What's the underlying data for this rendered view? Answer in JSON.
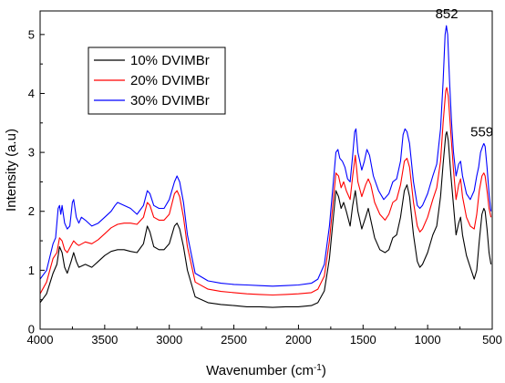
{
  "chart_data": {
    "type": "line",
    "title": "",
    "xlabel": "Wavenumber (cm",
    "xlabel_sup": "-1",
    "xlabel_tail": ")",
    "ylabel": "Intensity (a.u)",
    "xlim": [
      4000,
      500
    ],
    "ylim": [
      0,
      5.4
    ],
    "x_reversed": true,
    "x_ticks": [
      4000,
      3500,
      3000,
      2500,
      2000,
      1500,
      1000,
      500
    ],
    "x_tick_labels": [
      "4000",
      "3500",
      "3000",
      "2500",
      "2000",
      "1500",
      "1000",
      "500"
    ],
    "y_ticks": [
      0,
      1,
      2,
      3,
      4,
      5
    ],
    "y_tick_labels": [
      "0",
      "1",
      "2",
      "3",
      "4",
      "5"
    ],
    "grid": false,
    "legend_position": "top-left",
    "annotations": [
      {
        "text": "852",
        "x": 852,
        "y": 5.15
      },
      {
        "text": "559",
        "x": 559,
        "y": 3.15
      }
    ],
    "series": [
      {
        "name": "10% DVIMBr",
        "color": "#000000",
        "points": [
          [
            4000,
            0.45
          ],
          [
            3950,
            0.6
          ],
          [
            3900,
            0.95
          ],
          [
            3870,
            1.1
          ],
          [
            3850,
            1.4
          ],
          [
            3830,
            1.3
          ],
          [
            3810,
            1.05
          ],
          [
            3790,
            0.95
          ],
          [
            3760,
            1.15
          ],
          [
            3740,
            1.3
          ],
          [
            3720,
            1.15
          ],
          [
            3700,
            1.05
          ],
          [
            3650,
            1.1
          ],
          [
            3600,
            1.05
          ],
          [
            3550,
            1.15
          ],
          [
            3500,
            1.25
          ],
          [
            3450,
            1.32
          ],
          [
            3400,
            1.35
          ],
          [
            3350,
            1.35
          ],
          [
            3300,
            1.32
          ],
          [
            3250,
            1.3
          ],
          [
            3200,
            1.45
          ],
          [
            3170,
            1.75
          ],
          [
            3150,
            1.65
          ],
          [
            3120,
            1.4
          ],
          [
            3080,
            1.35
          ],
          [
            3040,
            1.35
          ],
          [
            3000,
            1.45
          ],
          [
            2960,
            1.75
          ],
          [
            2940,
            1.8
          ],
          [
            2920,
            1.7
          ],
          [
            2890,
            1.4
          ],
          [
            2860,
            1.0
          ],
          [
            2800,
            0.55
          ],
          [
            2700,
            0.45
          ],
          [
            2600,
            0.42
          ],
          [
            2500,
            0.4
          ],
          [
            2400,
            0.38
          ],
          [
            2300,
            0.38
          ],
          [
            2200,
            0.37
          ],
          [
            2100,
            0.38
          ],
          [
            2000,
            0.38
          ],
          [
            1900,
            0.4
          ],
          [
            1850,
            0.45
          ],
          [
            1800,
            0.65
          ],
          [
            1760,
            1.2
          ],
          [
            1730,
            1.9
          ],
          [
            1710,
            2.35
          ],
          [
            1690,
            2.25
          ],
          [
            1670,
            2.05
          ],
          [
            1650,
            2.15
          ],
          [
            1630,
            2.0
          ],
          [
            1600,
            1.75
          ],
          [
            1580,
            2.1
          ],
          [
            1560,
            2.35
          ],
          [
            1540,
            2.0
          ],
          [
            1510,
            1.7
          ],
          [
            1480,
            1.9
          ],
          [
            1460,
            2.05
          ],
          [
            1440,
            1.85
          ],
          [
            1410,
            1.55
          ],
          [
            1370,
            1.35
          ],
          [
            1330,
            1.3
          ],
          [
            1300,
            1.35
          ],
          [
            1270,
            1.55
          ],
          [
            1240,
            1.6
          ],
          [
            1210,
            1.9
          ],
          [
            1180,
            2.35
          ],
          [
            1160,
            2.45
          ],
          [
            1140,
            2.25
          ],
          [
            1110,
            1.6
          ],
          [
            1080,
            1.15
          ],
          [
            1060,
            1.05
          ],
          [
            1040,
            1.1
          ],
          [
            1000,
            1.3
          ],
          [
            960,
            1.6
          ],
          [
            930,
            1.75
          ],
          [
            900,
            2.25
          ],
          [
            880,
            2.8
          ],
          [
            860,
            3.3
          ],
          [
            852,
            3.35
          ],
          [
            840,
            3.2
          ],
          [
            820,
            2.6
          ],
          [
            800,
            2.1
          ],
          [
            780,
            1.6
          ],
          [
            760,
            1.8
          ],
          [
            745,
            1.9
          ],
          [
            730,
            1.6
          ],
          [
            700,
            1.25
          ],
          [
            670,
            1.05
          ],
          [
            640,
            0.85
          ],
          [
            620,
            1.0
          ],
          [
            600,
            1.5
          ],
          [
            580,
            1.95
          ],
          [
            565,
            2.05
          ],
          [
            555,
            2.0
          ],
          [
            540,
            1.7
          ],
          [
            525,
            1.3
          ],
          [
            510,
            1.1
          ]
        ]
      },
      {
        "name": "20% DVIMBr",
        "color": "#ff0000",
        "points": [
          [
            4000,
            0.6
          ],
          [
            3950,
            0.8
          ],
          [
            3900,
            1.2
          ],
          [
            3870,
            1.3
          ],
          [
            3850,
            1.55
          ],
          [
            3830,
            1.5
          ],
          [
            3810,
            1.35
          ],
          [
            3790,
            1.3
          ],
          [
            3760,
            1.42
          ],
          [
            3740,
            1.5
          ],
          [
            3720,
            1.45
          ],
          [
            3700,
            1.42
          ],
          [
            3650,
            1.48
          ],
          [
            3600,
            1.45
          ],
          [
            3550,
            1.52
          ],
          [
            3500,
            1.62
          ],
          [
            3450,
            1.72
          ],
          [
            3400,
            1.78
          ],
          [
            3350,
            1.8
          ],
          [
            3300,
            1.8
          ],
          [
            3250,
            1.78
          ],
          [
            3200,
            1.9
          ],
          [
            3170,
            2.15
          ],
          [
            3150,
            2.1
          ],
          [
            3120,
            1.9
          ],
          [
            3080,
            1.85
          ],
          [
            3040,
            1.85
          ],
          [
            3000,
            1.95
          ],
          [
            2960,
            2.3
          ],
          [
            2940,
            2.35
          ],
          [
            2920,
            2.25
          ],
          [
            2890,
            1.9
          ],
          [
            2860,
            1.4
          ],
          [
            2800,
            0.8
          ],
          [
            2700,
            0.68
          ],
          [
            2600,
            0.64
          ],
          [
            2500,
            0.62
          ],
          [
            2400,
            0.6
          ],
          [
            2300,
            0.59
          ],
          [
            2200,
            0.58
          ],
          [
            2100,
            0.59
          ],
          [
            2000,
            0.6
          ],
          [
            1900,
            0.62
          ],
          [
            1850,
            0.68
          ],
          [
            1800,
            0.9
          ],
          [
            1760,
            1.5
          ],
          [
            1730,
            2.2
          ],
          [
            1710,
            2.65
          ],
          [
            1690,
            2.6
          ],
          [
            1670,
            2.4
          ],
          [
            1650,
            2.5
          ],
          [
            1630,
            2.35
          ],
          [
            1600,
            2.2
          ],
          [
            1580,
            2.6
          ],
          [
            1560,
            2.95
          ],
          [
            1540,
            2.5
          ],
          [
            1510,
            2.25
          ],
          [
            1480,
            2.45
          ],
          [
            1460,
            2.55
          ],
          [
            1440,
            2.45
          ],
          [
            1410,
            2.15
          ],
          [
            1370,
            1.95
          ],
          [
            1330,
            1.85
          ],
          [
            1300,
            1.95
          ],
          [
            1270,
            2.15
          ],
          [
            1240,
            2.2
          ],
          [
            1210,
            2.45
          ],
          [
            1180,
            2.85
          ],
          [
            1160,
            2.9
          ],
          [
            1140,
            2.75
          ],
          [
            1110,
            2.15
          ],
          [
            1080,
            1.75
          ],
          [
            1060,
            1.65
          ],
          [
            1040,
            1.7
          ],
          [
            1000,
            1.9
          ],
          [
            960,
            2.2
          ],
          [
            930,
            2.4
          ],
          [
            900,
            2.85
          ],
          [
            880,
            3.5
          ],
          [
            860,
            4.05
          ],
          [
            852,
            4.1
          ],
          [
            840,
            3.95
          ],
          [
            820,
            3.3
          ],
          [
            800,
            2.7
          ],
          [
            780,
            2.2
          ],
          [
            760,
            2.45
          ],
          [
            745,
            2.55
          ],
          [
            730,
            2.25
          ],
          [
            700,
            1.9
          ],
          [
            670,
            1.75
          ],
          [
            640,
            1.7
          ],
          [
            620,
            1.95
          ],
          [
            600,
            2.35
          ],
          [
            580,
            2.6
          ],
          [
            565,
            2.65
          ],
          [
            555,
            2.6
          ],
          [
            540,
            2.35
          ],
          [
            525,
            2.05
          ],
          [
            510,
            1.9
          ]
        ]
      },
      {
        "name": "30% DVIMBr",
        "color": "#0000ff",
        "points": [
          [
            4000,
            0.85
          ],
          [
            3950,
            1.0
          ],
          [
            3900,
            1.45
          ],
          [
            3880,
            1.55
          ],
          [
            3860,
            2.05
          ],
          [
            3850,
            2.1
          ],
          [
            3840,
            1.95
          ],
          [
            3830,
            2.1
          ],
          [
            3810,
            1.8
          ],
          [
            3790,
            1.7
          ],
          [
            3770,
            1.75
          ],
          [
            3750,
            2.15
          ],
          [
            3740,
            2.2
          ],
          [
            3720,
            1.9
          ],
          [
            3700,
            1.8
          ],
          [
            3680,
            1.9
          ],
          [
            3650,
            1.85
          ],
          [
            3600,
            1.75
          ],
          [
            3550,
            1.8
          ],
          [
            3500,
            1.9
          ],
          [
            3450,
            2.0
          ],
          [
            3420,
            2.1
          ],
          [
            3400,
            2.15
          ],
          [
            3350,
            2.1
          ],
          [
            3300,
            2.05
          ],
          [
            3250,
            1.95
          ],
          [
            3200,
            2.1
          ],
          [
            3170,
            2.35
          ],
          [
            3150,
            2.3
          ],
          [
            3120,
            2.1
          ],
          [
            3080,
            2.05
          ],
          [
            3040,
            2.05
          ],
          [
            3000,
            2.2
          ],
          [
            2960,
            2.5
          ],
          [
            2940,
            2.6
          ],
          [
            2920,
            2.5
          ],
          [
            2890,
            2.15
          ],
          [
            2860,
            1.6
          ],
          [
            2800,
            0.95
          ],
          [
            2700,
            0.82
          ],
          [
            2600,
            0.78
          ],
          [
            2500,
            0.76
          ],
          [
            2400,
            0.75
          ],
          [
            2300,
            0.74
          ],
          [
            2200,
            0.73
          ],
          [
            2100,
            0.74
          ],
          [
            2000,
            0.75
          ],
          [
            1900,
            0.78
          ],
          [
            1850,
            0.85
          ],
          [
            1800,
            1.1
          ],
          [
            1760,
            1.75
          ],
          [
            1730,
            2.5
          ],
          [
            1710,
            3.0
          ],
          [
            1695,
            3.05
          ],
          [
            1680,
            2.9
          ],
          [
            1660,
            2.85
          ],
          [
            1640,
            2.75
          ],
          [
            1620,
            2.55
          ],
          [
            1600,
            2.5
          ],
          [
            1580,
            2.95
          ],
          [
            1565,
            3.35
          ],
          [
            1555,
            3.4
          ],
          [
            1540,
            3.0
          ],
          [
            1510,
            2.7
          ],
          [
            1490,
            2.85
          ],
          [
            1470,
            3.05
          ],
          [
            1450,
            2.95
          ],
          [
            1420,
            2.6
          ],
          [
            1380,
            2.35
          ],
          [
            1340,
            2.2
          ],
          [
            1300,
            2.3
          ],
          [
            1270,
            2.5
          ],
          [
            1240,
            2.55
          ],
          [
            1210,
            2.85
          ],
          [
            1190,
            3.3
          ],
          [
            1175,
            3.4
          ],
          [
            1160,
            3.35
          ],
          [
            1140,
            3.15
          ],
          [
            1110,
            2.5
          ],
          [
            1080,
            2.1
          ],
          [
            1060,
            2.05
          ],
          [
            1040,
            2.1
          ],
          [
            1000,
            2.3
          ],
          [
            960,
            2.6
          ],
          [
            930,
            2.8
          ],
          [
            900,
            3.4
          ],
          [
            880,
            4.2
          ],
          [
            865,
            5.0
          ],
          [
            855,
            5.15
          ],
          [
            845,
            5.0
          ],
          [
            830,
            4.2
          ],
          [
            815,
            3.5
          ],
          [
            800,
            3.0
          ],
          [
            780,
            2.6
          ],
          [
            760,
            2.8
          ],
          [
            745,
            2.85
          ],
          [
            730,
            2.6
          ],
          [
            700,
            2.3
          ],
          [
            670,
            2.2
          ],
          [
            640,
            2.35
          ],
          [
            620,
            2.6
          ],
          [
            605,
            2.75
          ],
          [
            590,
            3.0
          ],
          [
            575,
            3.1
          ],
          [
            565,
            3.15
          ],
          [
            555,
            3.1
          ],
          [
            540,
            2.75
          ],
          [
            525,
            2.3
          ],
          [
            510,
            2.0
          ]
        ]
      }
    ]
  }
}
